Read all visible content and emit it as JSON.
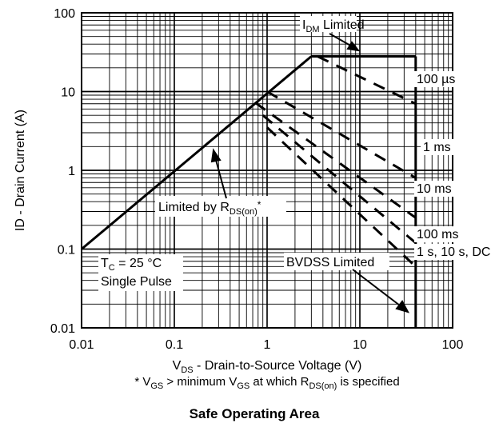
{
  "chart_data": {
    "type": "line",
    "title": "Safe Operating Area",
    "xlabel": "V_DS - Drain-to-Source Voltage (V)",
    "xlabel_parts": {
      "pre": "V",
      "sub": "DS",
      "post": " - Drain-to-Source Voltage (V)"
    },
    "ylabel": "ID - Drain Current (A)",
    "footnote": "* V_GS > minimum V_GS at which R_DS(on) is specified",
    "footnote_parts": [
      {
        "t": "* V",
        "sub": false
      },
      {
        "t": "GS",
        "sub": true
      },
      {
        "t": " > minimum V",
        "sub": false
      },
      {
        "t": "GS",
        "sub": true
      },
      {
        "t": " at which R",
        "sub": false
      },
      {
        "t": "DS(on)",
        "sub": true
      },
      {
        "t": " is specified",
        "sub": false
      }
    ],
    "x_scale": "log",
    "y_scale": "log",
    "xlim": [
      0.01,
      100
    ],
    "ylim": [
      0.01,
      100
    ],
    "grid": true,
    "x_ticks": [
      "0.01",
      "0.1",
      "1",
      "10",
      "100"
    ],
    "y_ticks": [
      "0.01",
      "0.1",
      "1",
      "10",
      "100"
    ],
    "series": [
      {
        "name": "Limited by R_DS(on)*",
        "style": "solid",
        "x": [
          0.01,
          3.0
        ],
        "y": [
          0.1,
          28
        ]
      },
      {
        "name": "I_DM Limited",
        "style": "solid",
        "x": [
          3.0,
          40
        ],
        "y": [
          28,
          28
        ]
      },
      {
        "name": "BVDSS Limited",
        "style": "solid",
        "x": [
          40,
          40
        ],
        "y": [
          28,
          0.01
        ]
      },
      {
        "name": "100 µs",
        "style": "dashed",
        "x": [
          3.5,
          40
        ],
        "y": [
          28,
          7
        ]
      },
      {
        "name": "1 ms",
        "style": "dashed",
        "x": [
          1.0,
          40
        ],
        "y": [
          10,
          0.8
        ]
      },
      {
        "name": "10 ms",
        "style": "dashed",
        "x": [
          0.75,
          40
        ],
        "y": [
          7.2,
          0.25
        ]
      },
      {
        "name": "100 ms",
        "style": "dashed",
        "x": [
          0.9,
          40
        ],
        "y": [
          5,
          0.12
        ]
      },
      {
        "name": "1 s, 10 s, DC",
        "style": "dashed",
        "x": [
          1.0,
          40
        ],
        "y": [
          3.5,
          0.06
        ]
      }
    ],
    "annotations": {
      "idm": {
        "pre": "I",
        "sub": "DM",
        "post": " Limited"
      },
      "rds": {
        "pre": "Limited by R",
        "sub": "DS(on)",
        "post": "*"
      },
      "bvdss": "BVDSS Limited",
      "tc": {
        "pre": "T",
        "sub": "C",
        "post": " = 25 °C"
      },
      "single_pulse": "Single Pulse",
      "curve_labels": [
        "100 µs",
        "1 ms",
        "10 ms",
        "100 ms",
        "1 s, 10 s, DC"
      ]
    }
  }
}
